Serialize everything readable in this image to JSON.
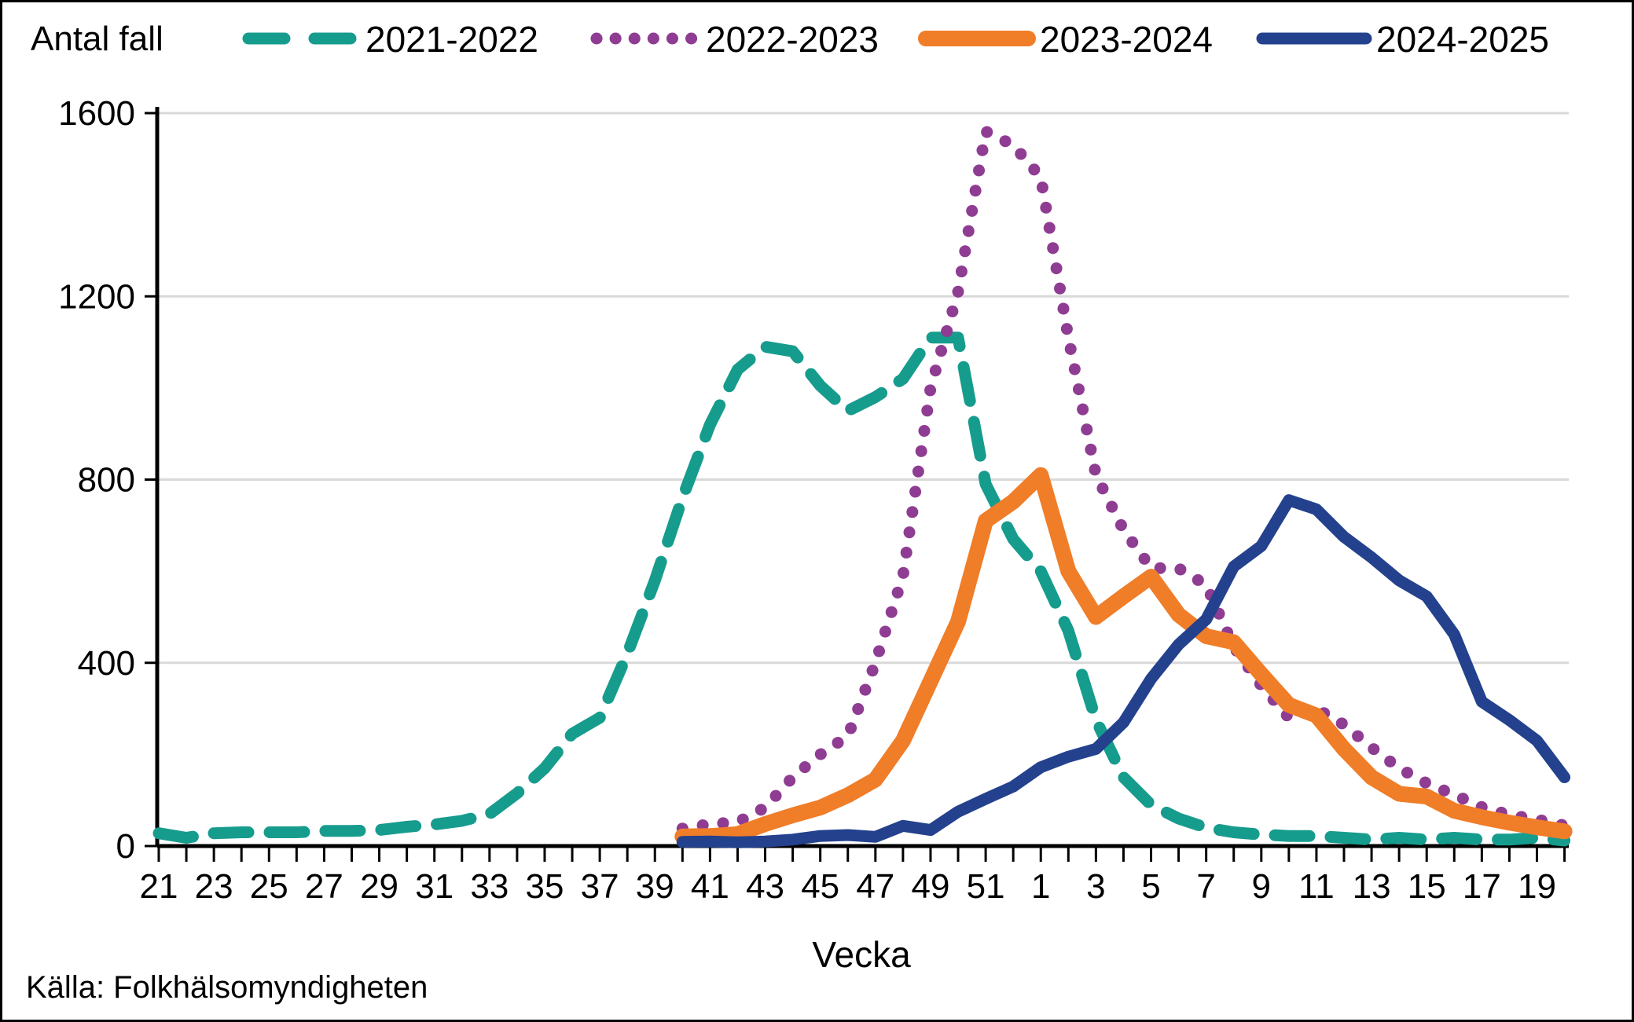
{
  "header": {
    "y_axis_title": "Antal fall",
    "x_axis_title": "Vecka",
    "source": "Källa: Folkhälsomyndigheten"
  },
  "colors": {
    "teal": "#169C8D",
    "purple": "#8F3C93",
    "orange": "#F07D28",
    "blue": "#24418E",
    "gridline": "#D9D9D9",
    "axis": "#000000",
    "background": "#FFFFFF"
  },
  "chart_data": {
    "type": "line",
    "title": "",
    "xlabel": "Vecka",
    "ylabel": "Antal fall",
    "ylim": [
      0,
      1600
    ],
    "grid": "horizontal",
    "legend_position": "top",
    "y_ticks": [
      0,
      400,
      800,
      1200,
      1600
    ],
    "x_tick_labels": [
      "21",
      "23",
      "25",
      "27",
      "29",
      "31",
      "33",
      "35",
      "37",
      "39",
      "41",
      "43",
      "45",
      "47",
      "49",
      "51",
      "1",
      "3",
      "5",
      "7",
      "9",
      "11",
      "13",
      "15",
      "17",
      "19"
    ],
    "weeks": [
      21,
      22,
      23,
      24,
      25,
      26,
      27,
      28,
      29,
      30,
      31,
      32,
      33,
      34,
      35,
      36,
      37,
      38,
      39,
      40,
      41,
      42,
      43,
      44,
      45,
      46,
      47,
      48,
      49,
      50,
      51,
      52,
      1,
      2,
      3,
      4,
      5,
      6,
      7,
      8,
      9,
      10,
      11,
      12,
      13,
      14,
      15,
      16,
      17,
      18,
      19,
      20
    ],
    "series": [
      {
        "name": "2021-2022",
        "style": "dashed",
        "color": "#169C8D",
        "values": [
          28,
          18,
          28,
          30,
          30,
          30,
          33,
          33,
          35,
          42,
          47,
          55,
          70,
          115,
          170,
          245,
          280,
          420,
          580,
          760,
          920,
          1040,
          1090,
          1080,
          1005,
          950,
          980,
          1020,
          1110,
          1110,
          790,
          670,
          600,
          470,
          275,
          150,
          90,
          60,
          40,
          30,
          25,
          22,
          22,
          18,
          14,
          18,
          14,
          18,
          14,
          14,
          18,
          12
        ]
      },
      {
        "name": "2022-2023",
        "style": "dotted",
        "color": "#8F3C93",
        "values": [
          null,
          null,
          null,
          null,
          null,
          null,
          null,
          null,
          null,
          null,
          null,
          null,
          null,
          null,
          null,
          null,
          null,
          null,
          null,
          38,
          48,
          52,
          84,
          150,
          200,
          240,
          400,
          590,
          1000,
          1210,
          1560,
          1530,
          1460,
          1110,
          810,
          690,
          607,
          606,
          570,
          435,
          350,
          280,
          300,
          265,
          215,
          170,
          137,
          112,
          85,
          68,
          58,
          45
        ]
      },
      {
        "name": "2023-2024",
        "style": "solid-thick",
        "color": "#F07D28",
        "values": [
          null,
          null,
          null,
          null,
          null,
          null,
          null,
          null,
          null,
          null,
          null,
          null,
          null,
          null,
          null,
          null,
          null,
          null,
          null,
          21,
          22,
          26,
          48,
          67,
          84,
          111,
          145,
          230,
          360,
          490,
          710,
          752,
          810,
          600,
          500,
          545,
          588,
          505,
          458,
          445,
          375,
          308,
          285,
          212,
          150,
          114,
          108,
          77,
          63,
          51,
          41,
          32
        ]
      },
      {
        "name": "2024-2025",
        "style": "solid",
        "color": "#24418E",
        "values": [
          null,
          null,
          null,
          null,
          null,
          null,
          null,
          null,
          null,
          null,
          null,
          null,
          null,
          null,
          null,
          null,
          null,
          null,
          null,
          9,
          10,
          8,
          10,
          14,
          22,
          24,
          20,
          44,
          35,
          75,
          103,
          130,
          172,
          195,
          212,
          270,
          365,
          440,
          495,
          610,
          655,
          755,
          735,
          675,
          630,
          580,
          545,
          462,
          315,
          275,
          230,
          150
        ]
      }
    ]
  },
  "legend": {
    "items": [
      {
        "label": "2021-2022"
      },
      {
        "label": "2022-2023"
      },
      {
        "label": "2023-2024"
      },
      {
        "label": "2024-2025"
      }
    ]
  }
}
